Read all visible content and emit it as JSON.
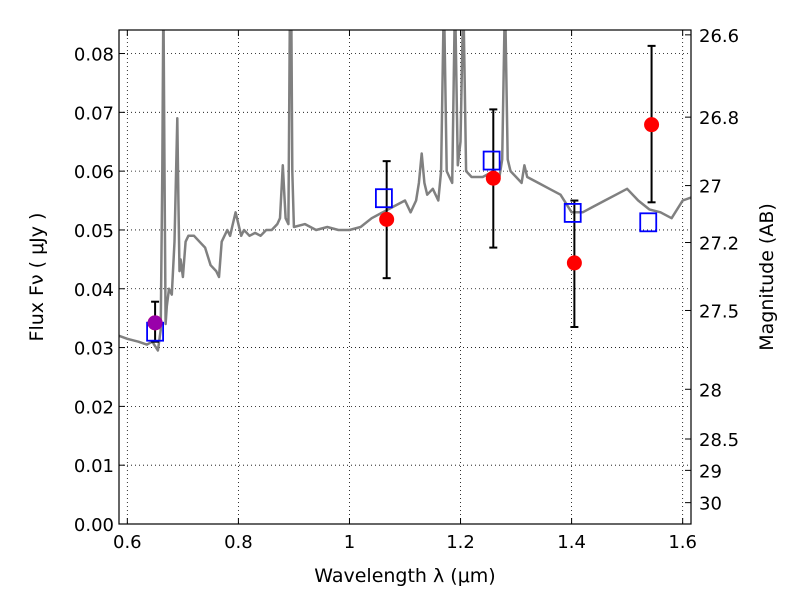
{
  "chart_data": {
    "type": "scatter",
    "xlabel": "Wavelength  λ (μm)",
    "ylabel": "Flux  Fν  ( μJy )",
    "y2label": "Magnitude (AB)",
    "xlim": [
      0.585,
      1.615
    ],
    "ylim": [
      0.0,
      0.084
    ],
    "grid": true,
    "x_ticks": [
      {
        "value": 0.6,
        "label": "0.6"
      },
      {
        "value": 0.8,
        "label": "0.8"
      },
      {
        "value": 1.0,
        "label": "1"
      },
      {
        "value": 1.2,
        "label": "1.2"
      },
      {
        "value": 1.4,
        "label": "1.4"
      },
      {
        "value": 1.6,
        "label": "1.6"
      }
    ],
    "y_ticks": [
      {
        "value": 0.0,
        "label": "0.00"
      },
      {
        "value": 0.01,
        "label": "0.01"
      },
      {
        "value": 0.02,
        "label": "0.02"
      },
      {
        "value": 0.03,
        "label": "0.03"
      },
      {
        "value": 0.04,
        "label": "0.04"
      },
      {
        "value": 0.05,
        "label": "0.05"
      },
      {
        "value": 0.06,
        "label": "0.06"
      },
      {
        "value": 0.07,
        "label": "0.07"
      },
      {
        "value": 0.08,
        "label": "0.08"
      }
    ],
    "y2_ticks": [
      {
        "value": 26.6,
        "label": "26.6"
      },
      {
        "value": 26.8,
        "label": "26.8"
      },
      {
        "value": 27.0,
        "label": "27"
      },
      {
        "value": 27.2,
        "label": "27.2"
      },
      {
        "value": 27.5,
        "label": "27.5"
      },
      {
        "value": 28.0,
        "label": "28"
      },
      {
        "value": 28.5,
        "label": "28.5"
      },
      {
        "value": 29.0,
        "label": "29"
      },
      {
        "value": 30.0,
        "label": "30"
      }
    ],
    "series": [
      {
        "kind": "line",
        "color": "#808080",
        "x": [
          0.585,
          0.6,
          0.62,
          0.635,
          0.645,
          0.655,
          0.66,
          0.663,
          0.665,
          0.667,
          0.669,
          0.671,
          0.675,
          0.68,
          0.685,
          0.69,
          0.692,
          0.694,
          0.696,
          0.7,
          0.705,
          0.71,
          0.72,
          0.73,
          0.74,
          0.75,
          0.76,
          0.765,
          0.77,
          0.775,
          0.78,
          0.785,
          0.79,
          0.795,
          0.8,
          0.805,
          0.81,
          0.82,
          0.83,
          0.84,
          0.85,
          0.86,
          0.87,
          0.875,
          0.88,
          0.885,
          0.89,
          0.893,
          0.895,
          0.897,
          0.9,
          0.92,
          0.94,
          0.96,
          0.98,
          1.0,
          1.02,
          1.04,
          1.06,
          1.08,
          1.1,
          1.11,
          1.12,
          1.125,
          1.13,
          1.135,
          1.14,
          1.15,
          1.16,
          1.165,
          1.17,
          1.175,
          1.18,
          1.185,
          1.19,
          1.195,
          1.2,
          1.205,
          1.21,
          1.22,
          1.24,
          1.26,
          1.27,
          1.275,
          1.28,
          1.285,
          1.29,
          1.3,
          1.31,
          1.315,
          1.32,
          1.34,
          1.36,
          1.38,
          1.4,
          1.42,
          1.44,
          1.46,
          1.48,
          1.5,
          1.52,
          1.54,
          1.56,
          1.58,
          1.6,
          1.615
        ],
        "y": [
          0.032,
          0.0315,
          0.031,
          0.0305,
          0.031,
          0.0295,
          0.033,
          0.06,
          0.09,
          0.06,
          0.034,
          0.037,
          0.04,
          0.039,
          0.048,
          0.069,
          0.055,
          0.043,
          0.045,
          0.042,
          0.048,
          0.049,
          0.049,
          0.048,
          0.047,
          0.044,
          0.043,
          0.042,
          0.048,
          0.049,
          0.05,
          0.049,
          0.051,
          0.053,
          0.051,
          0.049,
          0.05,
          0.049,
          0.0495,
          0.049,
          0.05,
          0.05,
          0.051,
          0.052,
          0.061,
          0.052,
          0.051,
          0.09,
          0.09,
          0.06,
          0.0505,
          0.051,
          0.05,
          0.0505,
          0.05,
          0.05,
          0.0505,
          0.052,
          0.053,
          0.054,
          0.055,
          0.053,
          0.055,
          0.058,
          0.063,
          0.058,
          0.056,
          0.057,
          0.055,
          0.06,
          0.09,
          0.06,
          0.059,
          0.058,
          0.09,
          0.061,
          0.065,
          0.09,
          0.06,
          0.059,
          0.059,
          0.06,
          0.059,
          0.062,
          0.09,
          0.062,
          0.06,
          0.059,
          0.058,
          0.061,
          0.059,
          0.058,
          0.057,
          0.056,
          0.053,
          0.053,
          0.054,
          0.055,
          0.056,
          0.057,
          0.055,
          0.0535,
          0.053,
          0.052,
          0.055,
          0.0555
        ]
      },
      {
        "kind": "points_with_errorbars",
        "color": "#ff0000",
        "x": [
          0.65,
          1.067,
          1.259,
          1.405,
          1.544
        ],
        "y": [
          0.0342,
          0.0518,
          0.0588,
          0.0444,
          0.0679
        ],
        "yerr_low": [
          0.031,
          0.0418,
          0.047,
          0.0335,
          0.0547
        ],
        "yerr_high": [
          0.0378,
          0.0617,
          0.0705,
          0.055,
          0.0813
        ]
      },
      {
        "kind": "open_squares",
        "color": "#0000ff",
        "x": [
          0.65,
          1.062,
          1.256,
          1.402,
          1.538
        ],
        "y": [
          0.0327,
          0.0554,
          0.0618,
          0.0529,
          0.0513
        ]
      },
      {
        "kind": "highlight_point",
        "color": "#9900aa",
        "x": [
          0.65
        ],
        "y": [
          0.0342
        ]
      }
    ]
  }
}
